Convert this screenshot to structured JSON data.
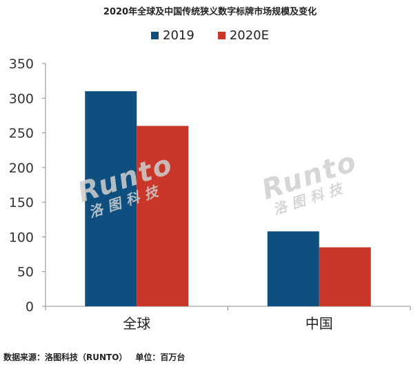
{
  "chart_data": {
    "type": "bar",
    "title": "2020年全球及中国传统狭义数字标牌市场规模及变化",
    "categories": [
      "全球",
      "中国"
    ],
    "series": [
      {
        "name": "2019",
        "values": [
          310,
          108
        ],
        "color": "#0e4f80"
      },
      {
        "name": "2020E",
        "values": [
          260,
          85
        ],
        "color": "#c9372a"
      }
    ],
    "ylim": [
      0,
      350
    ],
    "yticks": [
      "0",
      "50",
      "100",
      "150",
      "200",
      "250",
      "300",
      "350"
    ],
    "xlabel": "",
    "ylabel": "",
    "grid": false,
    "legend_position": "top-center"
  },
  "footer": {
    "source": "数据来源：洛图科技（RUNTO）",
    "unit": "单位：百万台"
  },
  "watermark": {
    "brand": "Runto",
    "subtitle": "洛图科技"
  }
}
